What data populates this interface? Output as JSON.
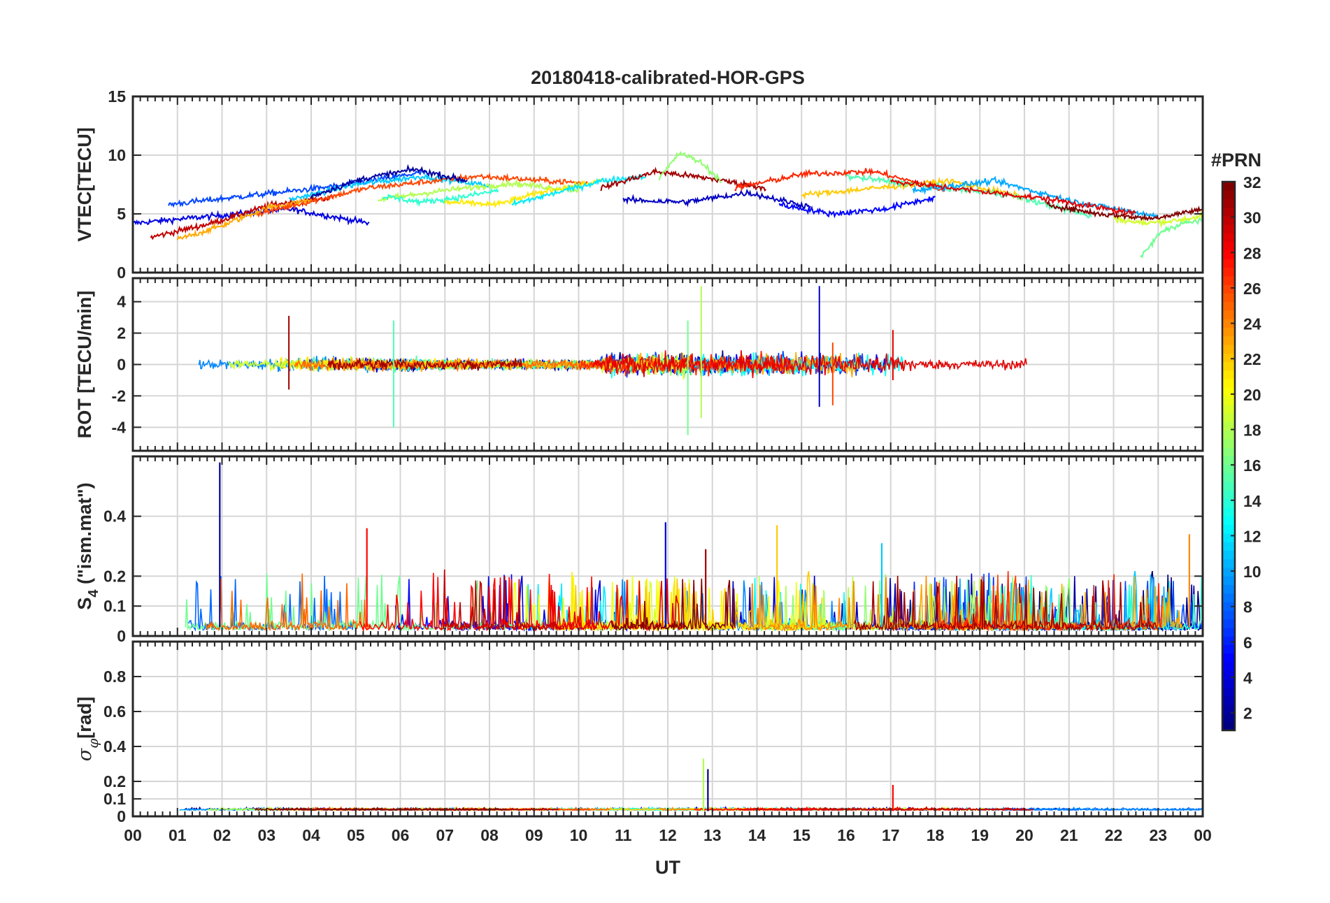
{
  "chart_data": {
    "type": "line",
    "title": "20180418-calibrated-HOR-GPS",
    "xlabel": "UT",
    "x_ticks": [
      "00",
      "01",
      "02",
      "03",
      "04",
      "05",
      "06",
      "07",
      "08",
      "09",
      "10",
      "11",
      "12",
      "13",
      "14",
      "15",
      "16",
      "17",
      "18",
      "19",
      "20",
      "21",
      "22",
      "23",
      "00"
    ],
    "xlim": [
      0,
      24
    ],
    "grid": true,
    "colorbar": {
      "label": "#PRN",
      "range": [
        1,
        32
      ],
      "ticks": [
        "2",
        "4",
        "6",
        "8",
        "10",
        "12",
        "14",
        "16",
        "18",
        "20",
        "22",
        "24",
        "26",
        "28",
        "30",
        "32"
      ],
      "colormap": "jet",
      "position": "right"
    },
    "panels": [
      {
        "ylabel": "VTEC[TECU]",
        "ylim": [
          0,
          15
        ],
        "y_ticks": [
          "0",
          "5",
          "10",
          "15"
        ],
        "sample_tracks": [
          {
            "prn": 4,
            "start": 0.0,
            "end": 5.3,
            "level": [
              4.2,
              4.8,
              5.4,
              4.2
            ]
          },
          {
            "prn": 30,
            "start": 0.4,
            "end": 4.5,
            "level": [
              3.0,
              4.2,
              5.8,
              6.4
            ]
          },
          {
            "prn": 7,
            "start": 0.8,
            "end": 6.6,
            "level": [
              5.8,
              6.6,
              7.4,
              8.6
            ]
          },
          {
            "prn": 23,
            "start": 1.0,
            "end": 4.0,
            "level": [
              2.8,
              4.0,
              5.5,
              6.2
            ]
          },
          {
            "prn": 11,
            "start": 3.5,
            "end": 8.0,
            "level": [
              6.2,
              7.5,
              8.2,
              7.4
            ]
          },
          {
            "prn": 26,
            "start": 2.8,
            "end": 10.2,
            "level": [
              5.0,
              7.2,
              8.2,
              7.6
            ]
          },
          {
            "prn": 2,
            "start": 4.0,
            "end": 7.5,
            "level": [
              6.5,
              8.0,
              8.8,
              7.8
            ]
          },
          {
            "prn": 18,
            "start": 5.5,
            "end": 10.0,
            "level": [
              6.2,
              7.0,
              7.6,
              7.0
            ]
          },
          {
            "prn": 14,
            "start": 5.6,
            "end": 8.2,
            "level": [
              6.5,
              6.0,
              6.4,
              7.0
            ]
          },
          {
            "prn": 21,
            "start": 7.0,
            "end": 10.5,
            "level": [
              6.0,
              5.8,
              7.0,
              7.8
            ]
          },
          {
            "prn": 12,
            "start": 8.5,
            "end": 11.5,
            "level": [
              5.8,
              6.8,
              7.8,
              8.2
            ]
          },
          {
            "prn": 31,
            "start": 10.5,
            "end": 14.2,
            "level": [
              7.2,
              8.6,
              8.0,
              7.2
            ]
          },
          {
            "prn": 17,
            "start": 11.8,
            "end": 13.2,
            "level": [
              8.0,
              10.2,
              9.4,
              7.8
            ]
          },
          {
            "prn": 3,
            "start": 11.0,
            "end": 15.2,
            "level": [
              6.2,
              6.0,
              6.8,
              5.6
            ]
          },
          {
            "prn": 27,
            "start": 13.5,
            "end": 18.2,
            "level": [
              7.2,
              8.4,
              8.6,
              7.0
            ]
          },
          {
            "prn": 5,
            "start": 14.5,
            "end": 18.0,
            "level": [
              5.8,
              5.0,
              5.4,
              6.4
            ]
          },
          {
            "prn": 22,
            "start": 15.0,
            "end": 20.0,
            "level": [
              6.6,
              7.2,
              7.8,
              6.4
            ]
          },
          {
            "prn": 15,
            "start": 16.0,
            "end": 21.5,
            "level": [
              8.2,
              7.4,
              6.6,
              4.8
            ]
          },
          {
            "prn": 10,
            "start": 17.5,
            "end": 23.0,
            "level": [
              7.0,
              7.8,
              6.0,
              4.8
            ]
          },
          {
            "prn": 29,
            "start": 17.0,
            "end": 22.5,
            "level": [
              7.8,
              7.0,
              6.2,
              5.0
            ]
          },
          {
            "prn": 32,
            "start": 20.5,
            "end": 24.0,
            "level": [
              5.8,
              5.0,
              4.6,
              5.4
            ]
          },
          {
            "prn": 19,
            "start": 22.0,
            "end": 24.0,
            "level": [
              4.6,
              4.2,
              4.4,
              4.8
            ]
          },
          {
            "prn": 16,
            "start": 22.6,
            "end": 24.0,
            "level": [
              1.2,
              3.5,
              4.2,
              4.4
            ]
          }
        ]
      },
      {
        "ylabel": "ROT [TECU/min]",
        "ylim": [
          -5.5,
          5.5
        ],
        "y_ticks": [
          "-4",
          "-2",
          "0",
          "2",
          "4"
        ],
        "baseline": 0,
        "typical_noise": 0.3,
        "spikes": [
          {
            "ut": 3.5,
            "min": -1.6,
            "max": 3.1,
            "prn": 31
          },
          {
            "ut": 5.85,
            "min": -4.0,
            "max": 2.8,
            "prn": 15
          },
          {
            "ut": 12.45,
            "min": -4.5,
            "max": 2.8,
            "prn": 16
          },
          {
            "ut": 12.75,
            "min": -3.4,
            "max": 5.0,
            "prn": 18
          },
          {
            "ut": 15.4,
            "min": -2.7,
            "max": 5.0,
            "prn": 3
          },
          {
            "ut": 15.7,
            "min": -2.6,
            "max": 1.4,
            "prn": 26
          },
          {
            "ut": 17.05,
            "min": -1.0,
            "max": 2.2,
            "prn": 29
          }
        ]
      },
      {
        "ylabel": "S4 (\"ism.mat\")",
        "ylabel_main": "S",
        "ylabel_sub": "4",
        "ylabel_rest": " (\"ism.mat\")",
        "ylim": [
          0,
          0.6
        ],
        "y_ticks": [
          "0",
          "0.1",
          "0.2",
          "0.4"
        ],
        "spikes": [
          {
            "ut": 1.95,
            "max": 0.58,
            "prn": 2
          },
          {
            "ut": 5.25,
            "max": 0.36,
            "prn": 28
          },
          {
            "ut": 11.95,
            "max": 0.38,
            "prn": 4
          },
          {
            "ut": 12.85,
            "max": 0.29,
            "prn": 31
          },
          {
            "ut": 14.45,
            "max": 0.37,
            "prn": 22
          },
          {
            "ut": 16.8,
            "max": 0.31,
            "prn": 11
          },
          {
            "ut": 23.7,
            "max": 0.34,
            "prn": 24
          }
        ]
      },
      {
        "ylabel": "σφ[rad]",
        "ylim": [
          0,
          1.0
        ],
        "y_ticks": [
          "0",
          "0.1",
          "0.2",
          "0.4",
          "0.6",
          "0.8"
        ],
        "spikes": [
          {
            "ut": 12.8,
            "max": 0.33,
            "prn": 18
          },
          {
            "ut": 12.9,
            "max": 0.27,
            "prn": 1
          },
          {
            "ut": 17.05,
            "max": 0.18,
            "prn": 28
          }
        ]
      }
    ]
  }
}
